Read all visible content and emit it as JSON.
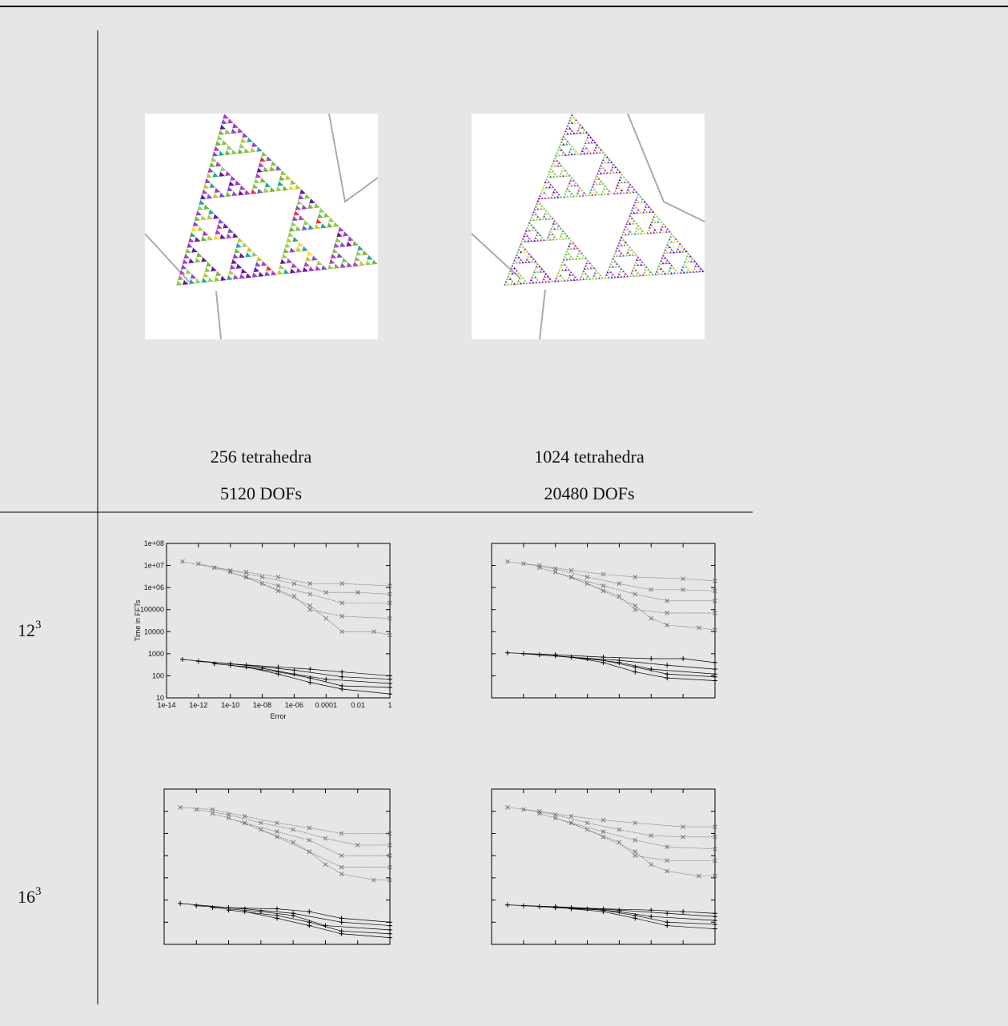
{
  "columns": [
    {
      "caption": [
        "256 tetrahedra",
        "5120 DOFs"
      ]
    },
    {
      "caption": [
        "1024 tetrahedra",
        "20480 DOFs"
      ]
    }
  ],
  "rows": [
    {
      "base": "12",
      "exp": "3"
    },
    {
      "base": "16",
      "exp": "3"
    }
  ],
  "axes": {
    "xscale": "log",
    "yscale": "log",
    "xlabel": "Error",
    "ylabel": "Time in FFTs",
    "xlim": [
      1e-14,
      1
    ],
    "ylim": [
      10,
      100000000
    ],
    "xticks": [
      {
        "value": 1e-14,
        "label": "1e-14"
      },
      {
        "value": 1e-12,
        "label": "1e-12"
      },
      {
        "value": 1e-10,
        "label": "1e-10"
      },
      {
        "value": 1e-08,
        "label": "1e-08"
      },
      {
        "value": 1e-06,
        "label": "1e-06"
      },
      0.0001,
      0.01,
      1
    ],
    "yticks": [
      {
        "value": 100000000,
        "label": "1e+08"
      },
      {
        "value": 10000000,
        "label": "1e+07"
      },
      {
        "value": 1000000,
        "label": "1e+06"
      },
      100000,
      10000,
      1000,
      100,
      10
    ]
  },
  "charts": [
    {
      "series": [
        {
          "color": "#777777",
          "marker": "x",
          "x": [
            1e-13,
            1e-11,
            1e-09,
            1e-07,
            1e-05,
            0.001,
            1
          ],
          "values": [
            15000000,
            8000000,
            5000000,
            3000000,
            1500000,
            1500000,
            1200000
          ]
        },
        {
          "color": "#777777",
          "marker": "x",
          "x": [
            1e-12,
            1e-10,
            1e-08,
            1e-06,
            0.0001,
            0.01,
            1
          ],
          "values": [
            12000000,
            6000000,
            3000000,
            1500000,
            600000,
            600000,
            500000
          ]
        },
        {
          "color": "#777777",
          "marker": "x",
          "x": [
            1e-11,
            1e-09,
            1e-07,
            1e-05,
            0.001,
            1
          ],
          "values": [
            8000000,
            3000000,
            1200000,
            500000,
            200000,
            200000
          ]
        },
        {
          "color": "#777777",
          "marker": "x",
          "x": [
            1e-10,
            1e-08,
            1e-06,
            1e-05,
            0.001,
            1
          ],
          "values": [
            5000000,
            1500000,
            400000,
            100000,
            50000,
            40000
          ]
        },
        {
          "color": "#777777",
          "marker": "x",
          "x": [
            1e-09,
            1e-07,
            1e-05,
            0.0001,
            0.001,
            0.1,
            1
          ],
          "values": [
            3000000,
            700000,
            150000,
            40000,
            10000,
            10000,
            7000
          ]
        },
        {
          "color": "#000000",
          "marker": "+",
          "x": [
            1e-13,
            1e-10,
            1e-07,
            1e-05,
            0.001,
            1
          ],
          "values": [
            550,
            350,
            250,
            200,
            150,
            100
          ]
        },
        {
          "color": "#000000",
          "marker": "+",
          "x": [
            1e-12,
            1e-09,
            1e-06,
            0.001,
            1
          ],
          "values": [
            450,
            300,
            180,
            90,
            70
          ]
        },
        {
          "color": "#000000",
          "marker": "+",
          "x": [
            1e-11,
            1e-08,
            1e-06,
            0.0001,
            1
          ],
          "values": [
            350,
            220,
            120,
            70,
            45
          ]
        },
        {
          "color": "#000000",
          "marker": "+",
          "x": [
            1e-10,
            1e-07,
            1e-05,
            0.001,
            1
          ],
          "values": [
            300,
            150,
            80,
            35,
            30
          ]
        },
        {
          "color": "#000000",
          "marker": "+",
          "x": [
            1e-09,
            1e-07,
            1e-05,
            0.001,
            1
          ],
          "values": [
            250,
            120,
            50,
            25,
            15
          ]
        }
      ]
    },
    {
      "series": [
        {
          "color": "#777777",
          "marker": "x",
          "x": [
            1e-13,
            1e-11,
            1e-09,
            1e-07,
            1e-05,
            0.01,
            1
          ],
          "values": [
            15000000,
            10000000,
            6000000,
            4000000,
            3000000,
            2500000,
            2000000
          ]
        },
        {
          "color": "#777777",
          "marker": "x",
          "x": [
            1e-12,
            1e-10,
            1e-08,
            1e-06,
            0.0001,
            0.01,
            1
          ],
          "values": [
            12000000,
            7000000,
            3000000,
            1500000,
            800000,
            800000,
            700000
          ]
        },
        {
          "color": "#777777",
          "marker": "x",
          "x": [
            1e-11,
            1e-09,
            1e-07,
            1e-05,
            0.001,
            1
          ],
          "values": [
            8000000,
            3000000,
            1200000,
            500000,
            250000,
            250000
          ]
        },
        {
          "color": "#777777",
          "marker": "x",
          "x": [
            1e-10,
            1e-08,
            1e-06,
            1e-05,
            0.001,
            1
          ],
          "values": [
            5000000,
            1500000,
            400000,
            100000,
            70000,
            70000
          ]
        },
        {
          "color": "#777777",
          "marker": "x",
          "x": [
            1e-09,
            1e-07,
            1e-05,
            0.0001,
            0.001,
            0.1,
            1
          ],
          "values": [
            3000000,
            700000,
            150000,
            40000,
            20000,
            15000,
            12000
          ]
        },
        {
          "color": "#000000",
          "marker": "+",
          "x": [
            1e-13,
            1e-10,
            1e-07,
            0.0001,
            0.01,
            1
          ],
          "values": [
            1100,
            900,
            700,
            600,
            600,
            400
          ]
        },
        {
          "color": "#000000",
          "marker": "+",
          "x": [
            1e-12,
            1e-09,
            1e-06,
            0.001,
            1
          ],
          "values": [
            1000,
            700,
            500,
            300,
            200
          ]
        },
        {
          "color": "#000000",
          "marker": "+",
          "x": [
            1e-11,
            1e-08,
            1e-06,
            0.0001,
            1
          ],
          "values": [
            900,
            600,
            400,
            200,
            120
          ]
        },
        {
          "color": "#000000",
          "marker": "+",
          "x": [
            1e-10,
            1e-07,
            1e-05,
            0.001,
            1
          ],
          "values": [
            800,
            500,
            250,
            120,
            90
          ]
        },
        {
          "color": "#000000",
          "marker": "+",
          "x": [
            1e-09,
            1e-07,
            1e-05,
            0.001,
            1
          ],
          "values": [
            700,
            400,
            150,
            80,
            60
          ]
        }
      ]
    },
    {
      "series": [
        {
          "color": "#777777",
          "marker": "x",
          "x": [
            1e-13,
            1e-11,
            1e-09,
            1e-07,
            1e-05,
            0.001,
            1
          ],
          "values": [
            15000000,
            12000000,
            6000000,
            3000000,
            1800000,
            1000000,
            1000000
          ]
        },
        {
          "color": "#777777",
          "marker": "x",
          "x": [
            1e-12,
            1e-10,
            1e-08,
            1e-06,
            0.0001,
            0.01,
            1
          ],
          "values": [
            12000000,
            7000000,
            3000000,
            1500000,
            600000,
            300000,
            300000
          ]
        },
        {
          "color": "#777777",
          "marker": "x",
          "x": [
            1e-11,
            1e-09,
            1e-07,
            1e-05,
            0.001,
            1
          ],
          "values": [
            8000000,
            3000000,
            1200000,
            500000,
            100000,
            100000
          ]
        },
        {
          "color": "#777777",
          "marker": "x",
          "x": [
            1e-10,
            1e-08,
            1e-06,
            1e-05,
            0.001,
            1
          ],
          "values": [
            5000000,
            1500000,
            400000,
            150000,
            30000,
            30000
          ]
        },
        {
          "color": "#777777",
          "marker": "x",
          "x": [
            1e-09,
            1e-07,
            1e-05,
            0.0001,
            0.001,
            0.1,
            1
          ],
          "values": [
            3000000,
            700000,
            150000,
            40000,
            15000,
            8000,
            8000
          ]
        },
        {
          "color": "#000000",
          "marker": "+",
          "x": [
            1e-13,
            1e-10,
            1e-07,
            1e-05,
            0.001,
            1
          ],
          "values": [
            700,
            450,
            400,
            300,
            150,
            100
          ]
        },
        {
          "color": "#000000",
          "marker": "+",
          "x": [
            1e-12,
            1e-09,
            1e-06,
            0.001,
            1
          ],
          "values": [
            550,
            400,
            250,
            100,
            70
          ]
        },
        {
          "color": "#000000",
          "marker": "+",
          "x": [
            1e-11,
            1e-08,
            1e-06,
            0.0001,
            1
          ],
          "values": [
            450,
            300,
            200,
            70,
            45
          ]
        },
        {
          "color": "#000000",
          "marker": "+",
          "x": [
            1e-10,
            1e-07,
            1e-05,
            0.001,
            1
          ],
          "values": [
            350,
            200,
            100,
            40,
            30
          ]
        },
        {
          "color": "#000000",
          "marker": "+",
          "x": [
            1e-09,
            1e-07,
            1e-05,
            0.001,
            1
          ],
          "values": [
            300,
            150,
            70,
            30,
            20
          ]
        }
      ]
    },
    {
      "series": [
        {
          "color": "#777777",
          "marker": "x",
          "x": [
            1e-13,
            1e-11,
            1e-09,
            1e-07,
            1e-05,
            0.01,
            1
          ],
          "values": [
            15000000,
            10000000,
            6000000,
            4000000,
            3000000,
            2000000,
            2000000
          ]
        },
        {
          "color": "#777777",
          "marker": "x",
          "x": [
            1e-12,
            1e-10,
            1e-08,
            1e-06,
            0.0001,
            0.01,
            1
          ],
          "values": [
            12000000,
            7000000,
            3000000,
            1500000,
            800000,
            700000,
            700000
          ]
        },
        {
          "color": "#777777",
          "marker": "x",
          "x": [
            1e-11,
            1e-09,
            1e-07,
            1e-05,
            0.001,
            1
          ],
          "values": [
            8000000,
            3000000,
            1200000,
            500000,
            250000,
            200000
          ]
        },
        {
          "color": "#777777",
          "marker": "x",
          "x": [
            1e-10,
            1e-08,
            1e-06,
            1e-05,
            0.001,
            1
          ],
          "values": [
            5000000,
            1500000,
            400000,
            100000,
            60000,
            60000
          ]
        },
        {
          "color": "#777777",
          "marker": "x",
          "x": [
            1e-09,
            1e-07,
            1e-05,
            0.0001,
            0.001,
            0.1,
            1
          ],
          "values": [
            3000000,
            700000,
            150000,
            40000,
            20000,
            12000,
            12000
          ]
        },
        {
          "color": "#000000",
          "marker": "+",
          "x": [
            1e-13,
            1e-10,
            1e-07,
            0.0001,
            0.01,
            1
          ],
          "values": [
            600,
            500,
            400,
            350,
            300,
            250
          ]
        },
        {
          "color": "#000000",
          "marker": "+",
          "x": [
            1e-12,
            1e-09,
            1e-06,
            0.001,
            1
          ],
          "values": [
            550,
            450,
            350,
            250,
            180
          ]
        },
        {
          "color": "#000000",
          "marker": "+",
          "x": [
            1e-11,
            1e-08,
            1e-06,
            0.0001,
            1
          ],
          "values": [
            500,
            400,
            300,
            180,
            120
          ]
        },
        {
          "color": "#000000",
          "marker": "+",
          "x": [
            1e-10,
            1e-07,
            1e-05,
            0.001,
            1
          ],
          "values": [
            450,
            350,
            200,
            100,
            80
          ]
        },
        {
          "color": "#000000",
          "marker": "+",
          "x": [
            1e-09,
            1e-07,
            1e-05,
            0.001,
            1
          ],
          "values": [
            400,
            300,
            150,
            70,
            50
          ]
        }
      ]
    }
  ]
}
